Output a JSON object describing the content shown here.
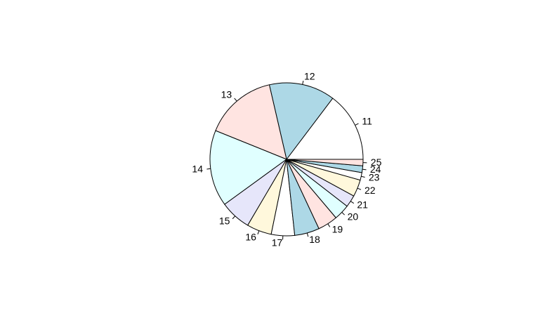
{
  "chart_data": {
    "type": "pie",
    "labels": [
      "11",
      "12",
      "13",
      "14",
      "15",
      "16",
      "17",
      "18",
      "19",
      "20",
      "21",
      "22",
      "23",
      "24",
      "25"
    ],
    "values": [
      18.5,
      17.5,
      19.2,
      20.3,
      8.2,
      6.6,
      6.2,
      6.6,
      5.3,
      4.2,
      3.2,
      4.5,
      2.0,
      1.8,
      1.7
    ],
    "colors": [
      "#FFFFFF",
      "#ADD8E6",
      "#FFE4E1",
      "#E0FFFF",
      "#E6E6FA",
      "#FFF8DC",
      "#FFFFFF",
      "#ADD8E6",
      "#FFE4E1",
      "#E0FFFF",
      "#E6E6FA",
      "#FFF8DC",
      "#FFFFFF",
      "#ADD8E6",
      "#FFE4E1"
    ],
    "start_angle_deg": 0,
    "direction": "counterclockwise"
  }
}
